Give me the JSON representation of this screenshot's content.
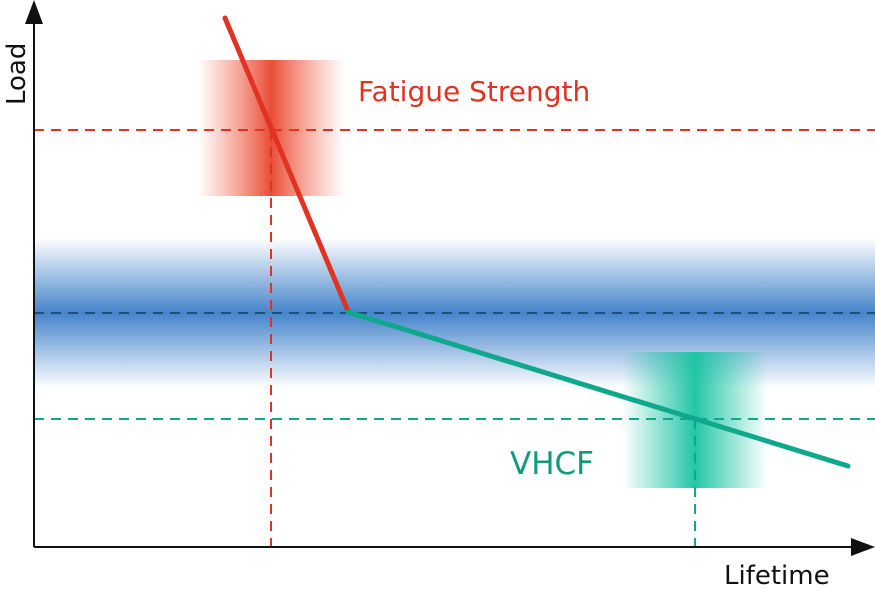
{
  "axes": {
    "y_label": "Load",
    "x_label": "Lifetime"
  },
  "labels": {
    "fatigue_strength": "Fatigue Strength",
    "vhcf": "VHCF"
  },
  "colors": {
    "axis": "#111111",
    "fatigue": "#e03321",
    "vhcf": "#0fa88c",
    "band": "#3b7ec8",
    "band_line": "#1f4e79"
  }
}
